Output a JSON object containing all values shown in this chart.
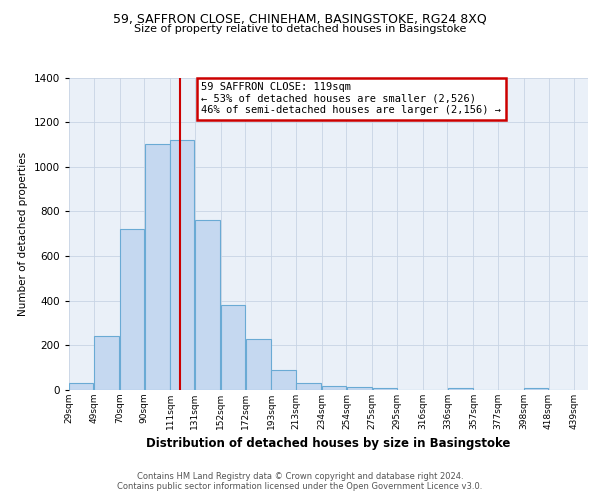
{
  "title_line1": "59, SAFFRON CLOSE, CHINEHAM, BASINGSTOKE, RG24 8XQ",
  "title_line2": "Size of property relative to detached houses in Basingstoke",
  "xlabel": "Distribution of detached houses by size in Basingstoke",
  "ylabel": "Number of detached properties",
  "annotation_line1": "59 SAFFRON CLOSE: 119sqm",
  "annotation_line2": "← 53% of detached houses are smaller (2,526)",
  "annotation_line3": "46% of semi-detached houses are larger (2,156) →",
  "vline_x": 119,
  "bar_left_edges": [
    29,
    49,
    70,
    90,
    111,
    131,
    152,
    172,
    193,
    213,
    234,
    254,
    275,
    295,
    316,
    336,
    357,
    377,
    398,
    418
  ],
  "bar_widths": [
    20,
    21,
    20,
    21,
    20,
    21,
    20,
    21,
    20,
    21,
    20,
    21,
    20,
    21,
    20,
    21,
    20,
    21,
    20,
    21
  ],
  "bar_heights": [
    30,
    240,
    720,
    1100,
    1120,
    760,
    380,
    230,
    90,
    30,
    20,
    15,
    10,
    0,
    0,
    10,
    0,
    0,
    10,
    0
  ],
  "bar_color": "#c5d8f0",
  "bar_edge_color": "#6aaad4",
  "vline_color": "#cc0000",
  "annotation_box_edge": "#cc0000",
  "ylim": [
    0,
    1400
  ],
  "yticks": [
    0,
    200,
    400,
    600,
    800,
    1000,
    1200,
    1400
  ],
  "xtick_labels": [
    "29sqm",
    "49sqm",
    "70sqm",
    "90sqm",
    "111sqm",
    "131sqm",
    "152sqm",
    "172sqm",
    "193sqm",
    "213sqm",
    "234sqm",
    "254sqm",
    "275sqm",
    "295sqm",
    "316sqm",
    "336sqm",
    "357sqm",
    "377sqm",
    "398sqm",
    "418sqm",
    "439sqm"
  ],
  "xtick_positions": [
    29,
    49,
    70,
    90,
    111,
    131,
    152,
    172,
    193,
    213,
    234,
    254,
    275,
    295,
    316,
    336,
    357,
    377,
    398,
    418,
    439
  ],
  "footer_line1": "Contains HM Land Registry data © Crown copyright and database right 2024.",
  "footer_line2": "Contains public sector information licensed under the Open Government Licence v3.0.",
  "bg_color": "#ffffff",
  "plot_bg_color": "#eaf0f8",
  "grid_color": "#c8d4e4"
}
